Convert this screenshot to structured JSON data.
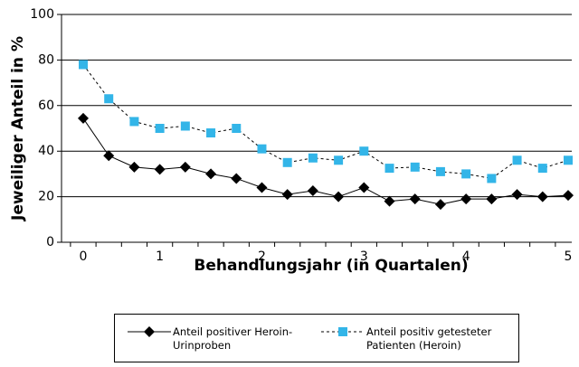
{
  "chart_data": {
    "type": "line",
    "xlabel": "Behandlungsjahr (in Quartalen)",
    "ylabel": "Jeweiliger Anteil in %",
    "categories": [
      "0",
      null,
      null,
      "1",
      null,
      null,
      null,
      "2",
      null,
      null,
      null,
      "3",
      null,
      null,
      null,
      "4",
      null,
      null,
      null,
      "5"
    ],
    "series": [
      {
        "name": "Anteil positiver Heroin-Urinproben",
        "color": "#000000",
        "marker": "diamond",
        "dashed": false,
        "values": [
          54.4,
          38,
          33,
          32,
          33,
          30,
          28,
          24,
          21,
          22.6,
          20,
          24,
          18,
          19,
          16.6,
          19,
          19,
          21,
          20,
          20.6
        ]
      },
      {
        "name": "Anteil positiv getesteter Patienten (Heroin)",
        "color": "#33b5e8",
        "marker": "square",
        "dashed": true,
        "values": [
          78,
          63,
          53,
          50,
          51,
          48,
          50,
          41,
          35,
          37,
          36,
          40,
          32.5,
          33,
          31,
          30,
          28,
          36,
          32.5,
          36
        ]
      }
    ],
    "ylim": [
      0,
      100
    ],
    "yticks": [
      0,
      20,
      40,
      60,
      80,
      100
    ],
    "grid": true
  }
}
